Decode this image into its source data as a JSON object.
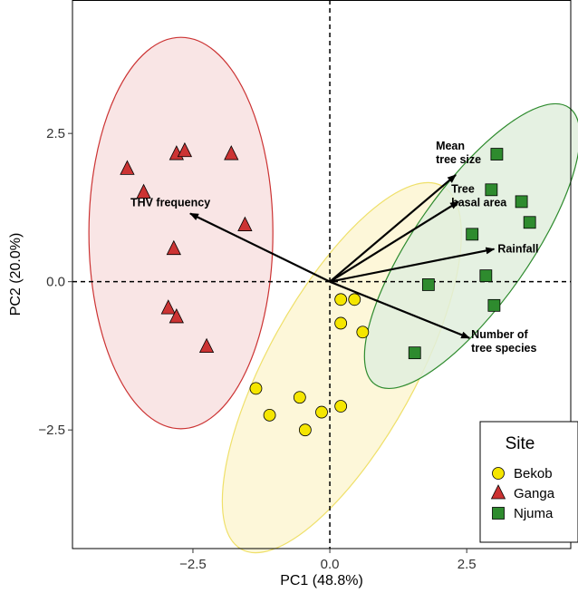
{
  "chart_data": {
    "type": "scatter",
    "title": "",
    "xlabel": "PC1 (48.8%)",
    "ylabel": "PC2 (20.0%)",
    "xlim": [
      -4.7,
      4.4
    ],
    "ylim": [
      -4.5,
      4.75
    ],
    "x_ticks": [
      -2.5,
      0.0,
      2.5
    ],
    "y_ticks": [
      -2.5,
      0.0,
      2.5
    ],
    "x_tick_labels": [
      "−2.5",
      "0.0",
      "2.5"
    ],
    "y_tick_labels": [
      "−2.5",
      "0.0",
      "2.5"
    ],
    "grid": false,
    "reference_lines": [
      {
        "axis": "x",
        "value": 0,
        "style": "dashed"
      },
      {
        "axis": "y",
        "value": 0,
        "style": "dashed"
      }
    ],
    "legend": {
      "title": "Site",
      "position": "bottom-right"
    },
    "series": [
      {
        "name": "Bekob",
        "marker": "circle",
        "color": "#f5e600",
        "ellipse_fill": "#fdf6d2",
        "ellipse_stroke": "#efe06a",
        "ellipse": {
          "center": [
            0.22,
            -1.45
          ],
          "semi_axes": [
            1.35,
            3.5
          ],
          "rotation_deg": 29
        },
        "points": [
          [
            0.2,
            -0.3
          ],
          [
            0.45,
            -0.3
          ],
          [
            0.2,
            -0.7
          ],
          [
            0.6,
            -0.85
          ],
          [
            -1.35,
            -1.8
          ],
          [
            -1.1,
            -2.25
          ],
          [
            -0.55,
            -1.95
          ],
          [
            -0.15,
            -2.2
          ],
          [
            0.2,
            -2.1
          ],
          [
            -0.45,
            -2.5
          ]
        ]
      },
      {
        "name": "Ganga",
        "marker": "triangle",
        "color": "#cc3333",
        "ellipse_fill": "#f8e0e0",
        "ellipse_stroke": "#cc3333",
        "ellipse": {
          "center": [
            -2.72,
            0.82
          ],
          "semi_axes": [
            1.68,
            3.3
          ],
          "rotation_deg": 0
        },
        "points": [
          [
            -3.7,
            1.9
          ],
          [
            -2.8,
            2.15
          ],
          [
            -2.65,
            2.2
          ],
          [
            -1.8,
            2.15
          ],
          [
            -3.4,
            1.5
          ],
          [
            -1.55,
            0.95
          ],
          [
            -2.85,
            0.55
          ],
          [
            -2.95,
            -0.45
          ],
          [
            -2.8,
            -0.6
          ],
          [
            -2.25,
            -1.1
          ]
        ]
      },
      {
        "name": "Njuma",
        "marker": "square",
        "color": "#2e8b2e",
        "ellipse_fill": "#e1eedd",
        "ellipse_stroke": "#2e8b2e",
        "ellipse": {
          "center": [
            2.6,
            0.6
          ],
          "semi_axes": [
            1.05,
            2.85
          ],
          "rotation_deg": 35
        },
        "points": [
          [
            3.05,
            2.15
          ],
          [
            2.95,
            1.55
          ],
          [
            3.5,
            1.35
          ],
          [
            3.65,
            1.0
          ],
          [
            2.6,
            0.8
          ],
          [
            2.85,
            0.1
          ],
          [
            1.8,
            -0.05
          ],
          [
            3.0,
            -0.4
          ],
          [
            1.55,
            -1.2
          ]
        ]
      }
    ],
    "vectors": [
      {
        "label": "THV frequency",
        "x": -2.55,
        "y": 1.15
      },
      {
        "label": "Mean\ntree size",
        "x": 2.3,
        "y": 1.8
      },
      {
        "label": "Tree\nbasal area",
        "x": 2.35,
        "y": 1.35
      },
      {
        "label": "Rainfall",
        "x": 3.0,
        "y": 0.55
      },
      {
        "label": "Number of\ntree species",
        "x": 2.55,
        "y": -0.95
      }
    ]
  }
}
